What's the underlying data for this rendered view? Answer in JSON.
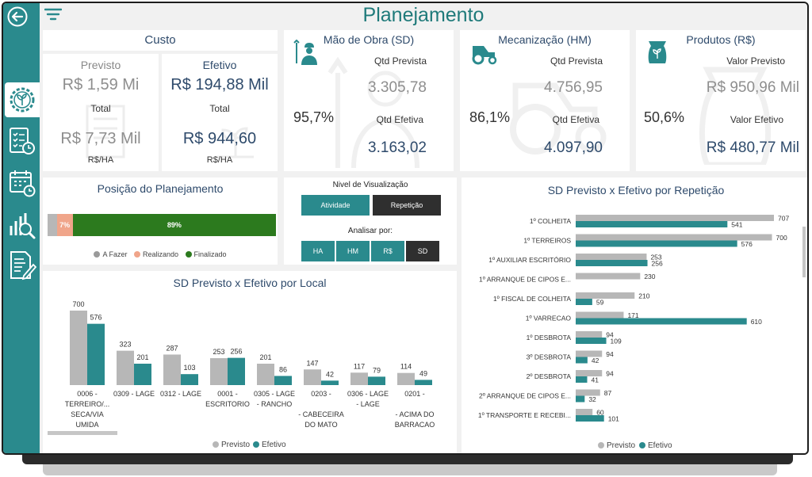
{
  "title": "Planejamento",
  "colors": {
    "teal": "#2a8a8d",
    "gray": "#b7b7b7",
    "darkBlue": "#2e4a6b",
    "green": "#2c7a1e",
    "salmon": "#f0a58a",
    "dark": "#2f2f2f"
  },
  "sidebar": {
    "icons": [
      "back-arrow-icon",
      "seedling-gear-icon",
      "checklist-clock-icon",
      "calendar-clock-icon",
      "chart-magnifier-icon",
      "document-pen-icon"
    ]
  },
  "custo": {
    "title": "Custo",
    "previsto_label": "Previsto",
    "previsto_value": "R$ 1,59 Mi",
    "previsto_total_label": "Total",
    "previsto_total_value": "R$ 7,73 Mil",
    "previsto_unit": "R$/HA",
    "efetivo_label": "Efetivo",
    "efetivo_value": "R$ 194,88 Mil",
    "efetivo_total_label": "Total",
    "efetivo_total_value": "R$ 944,60",
    "efetivo_unit": "R$/HA"
  },
  "mao_de_obra": {
    "title": "Mão de Obra (SD)",
    "percent": "95,7%",
    "qtd_prevista_label": "Qtd Prevista",
    "qtd_prevista": "3.305,78",
    "qtd_efetiva_label": "Qtd Efetiva",
    "qtd_efetiva": "3.163,02"
  },
  "mecanizacao": {
    "title": "Mecanização (HM)",
    "percent": "86,1%",
    "qtd_prevista_label": "Qtd Prevista",
    "qtd_prevista": "4.756,95",
    "qtd_efetiva_label": "Qtd Efetiva",
    "qtd_efetiva": "4.097,90"
  },
  "produtos": {
    "title": "Produtos (R$)",
    "percent": "50,6%",
    "valor_previsto_label": "Valor Previsto",
    "valor_previsto": "R$ 950,96 Mil",
    "valor_efetivo_label": "Valor Efetivo",
    "valor_efetivo": "R$ 480,77 Mil"
  },
  "posicao": {
    "title": "Posição do Planejamento",
    "segments": [
      {
        "label": "A Fazer",
        "pct": 4,
        "text": ""
      },
      {
        "label": "Realizando",
        "pct": 7,
        "text": "7%"
      },
      {
        "label": "Finalizado",
        "pct": 89,
        "text": "89%"
      }
    ],
    "legend": [
      "A Fazer",
      "Realizando",
      "Finalizado"
    ]
  },
  "nivel": {
    "title": "Nivel de Visualização",
    "options": [
      {
        "label": "Atividade",
        "selected": false
      },
      {
        "label": "Repetição",
        "selected": true
      }
    ],
    "analisar_title": "Analisar por:",
    "analisar_options": [
      {
        "label": "HA",
        "selected": false
      },
      {
        "label": "HM",
        "selected": false
      },
      {
        "label": "R$",
        "selected": false
      },
      {
        "label": "SD",
        "selected": true
      }
    ]
  },
  "chart_data": [
    {
      "type": "bar",
      "title": "SD Previsto x Efetivo por Local",
      "categories": [
        [
          "0006 -",
          "TERREIRO/...",
          "SECA/VIA",
          "UMIDA"
        ],
        [
          "0309 - LAGE"
        ],
        [
          "0312 - LAGE"
        ],
        [
          "0001 -",
          "ESCRITORIO"
        ],
        [
          "0305 - LAGE",
          "- RANCHO"
        ],
        [
          "0203 -",
          "",
          "- CABECEIRA",
          "DO MATO"
        ],
        [
          "0306 - LAGE",
          "- LAGE"
        ],
        [
          "0201 -",
          "",
          "- ACIMA DO",
          "BARRACAO"
        ]
      ],
      "series": [
        {
          "name": "Previsto",
          "values": [
            700,
            323,
            287,
            253,
            201,
            147,
            117,
            114
          ]
        },
        {
          "name": "Efetivo",
          "values": [
            576,
            201,
            103,
            256,
            86,
            42,
            79,
            49
          ]
        }
      ],
      "legend": [
        "Previsto",
        "Efetivo"
      ]
    },
    {
      "type": "bar",
      "title": "SD Previsto x Efetivo por Repetição",
      "categories": [
        "1º COLHEITA",
        "1º TERREIROS",
        "1º AUXILIAR ESCRITÓRIO",
        "1º ARRANQUE DE CIPOS E...",
        "1º FISCAL DE COLHEITA",
        "1º VARRECAO",
        "1º DESBROTA",
        "3º DESBROTA",
        "2º DESBROTA",
        "2º ARRANQUE DE CIPOS E...",
        "1º TRANSPORTE E RECEBI..."
      ],
      "series": [
        {
          "name": "Previsto",
          "values": [
            707,
            700,
            253,
            230,
            210,
            171,
            94,
            94,
            94,
            87,
            60
          ]
        },
        {
          "name": "Efetivo",
          "values": [
            541,
            576,
            256,
            null,
            59,
            610,
            109,
            42,
            41,
            32,
            101
          ]
        }
      ],
      "legend": [
        "Previsto",
        "Efetivo"
      ]
    }
  ]
}
